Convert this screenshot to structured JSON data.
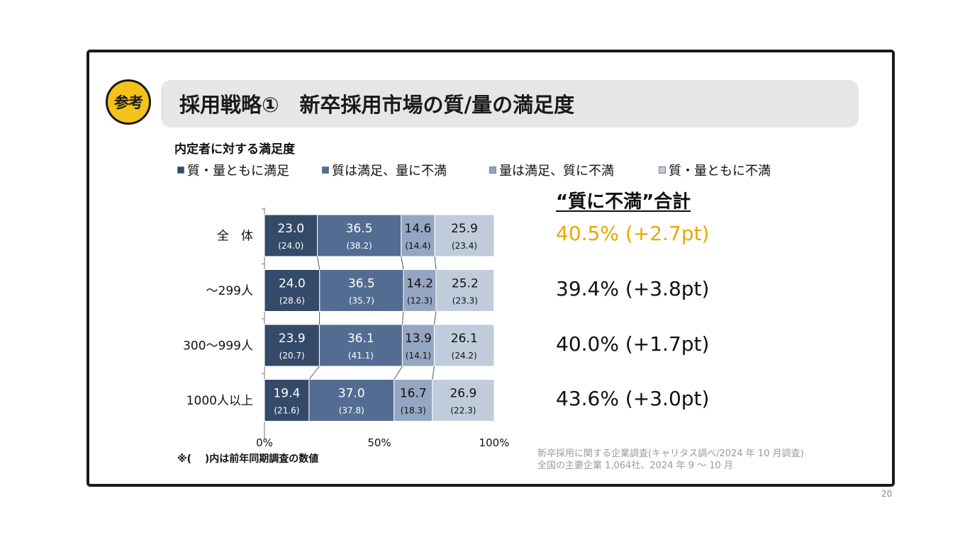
{
  "badge": "参考",
  "title": "採用戦略①　新卒採用市場の質/量の満足度",
  "chart_data": {
    "type": "bar",
    "orientation": "horizontal",
    "stacked": true,
    "percent": true,
    "title": "内定者に対する満足度",
    "categories": [
      "全　体",
      "～299人",
      "300～999人",
      "1000人以上"
    ],
    "series": [
      {
        "name": "質・量ともに満足",
        "color": "#344a69",
        "text_color": "#ffffff",
        "values": [
          23.0,
          24.0,
          23.9,
          19.4
        ],
        "prev": [
          24.0,
          28.6,
          20.7,
          21.6
        ]
      },
      {
        "name": "質は満足、量に不満",
        "color": "#536d92",
        "text_color": "#ffffff",
        "values": [
          36.5,
          36.5,
          36.1,
          37.0
        ],
        "prev": [
          38.2,
          35.7,
          41.1,
          37.8
        ]
      },
      {
        "name": "量は満足、質に不満",
        "color": "#94a6c1",
        "text_color": "#111111",
        "values": [
          14.6,
          14.2,
          13.9,
          16.7
        ],
        "prev": [
          14.4,
          12.3,
          14.1,
          18.3
        ]
      },
      {
        "name": "質・量ともに不満",
        "color": "#c0ccdc",
        "text_color": "#111111",
        "values": [
          25.9,
          25.2,
          26.1,
          26.9
        ],
        "prev": [
          23.4,
          23.3,
          24.2,
          22.3
        ]
      }
    ],
    "value_labels": [
      [
        "23.0",
        "36.5",
        "14.6",
        "25.9"
      ],
      [
        "24.0",
        "36.5",
        "14.2",
        "25.2"
      ],
      [
        "23.9",
        "36.1",
        "13.9",
        "26.1"
      ],
      [
        "19.4",
        "37.0",
        "16.7",
        "26.9"
      ]
    ],
    "prev_labels": [
      [
        "(24.0)",
        "(38.2)",
        "(14.4)",
        "(23.4)"
      ],
      [
        "(28.6)",
        "(35.7)",
        "(12.3)",
        "(23.3)"
      ],
      [
        "(20.7)",
        "(41.1)",
        "(14.1)",
        "(24.2)"
      ],
      [
        "(21.6)",
        "(37.8)",
        "(18.3)",
        "(22.3)"
      ]
    ],
    "x_ticks": [
      "0%",
      "50%",
      "100%"
    ],
    "xlim": [
      0,
      100
    ],
    "legend_position": "top",
    "grid": false
  },
  "totals": {
    "heading": "“質に不満”合計",
    "values": [
      "40.5% (+2.7pt)",
      "39.4% (+3.8pt)",
      "40.0% (+1.7pt)",
      "43.6% (+3.0pt)"
    ],
    "highlight_color": "#e9a800"
  },
  "footnote": "※(　 )内は前年同期調査の数値",
  "source": {
    "line1": "新卒採用に関する企業調査(キャリタス調べ/2024 年 10 月調査)",
    "line2": "全国の主要企業 1,064社、2024 年 9 ～ 10 月"
  },
  "page_number": "20"
}
